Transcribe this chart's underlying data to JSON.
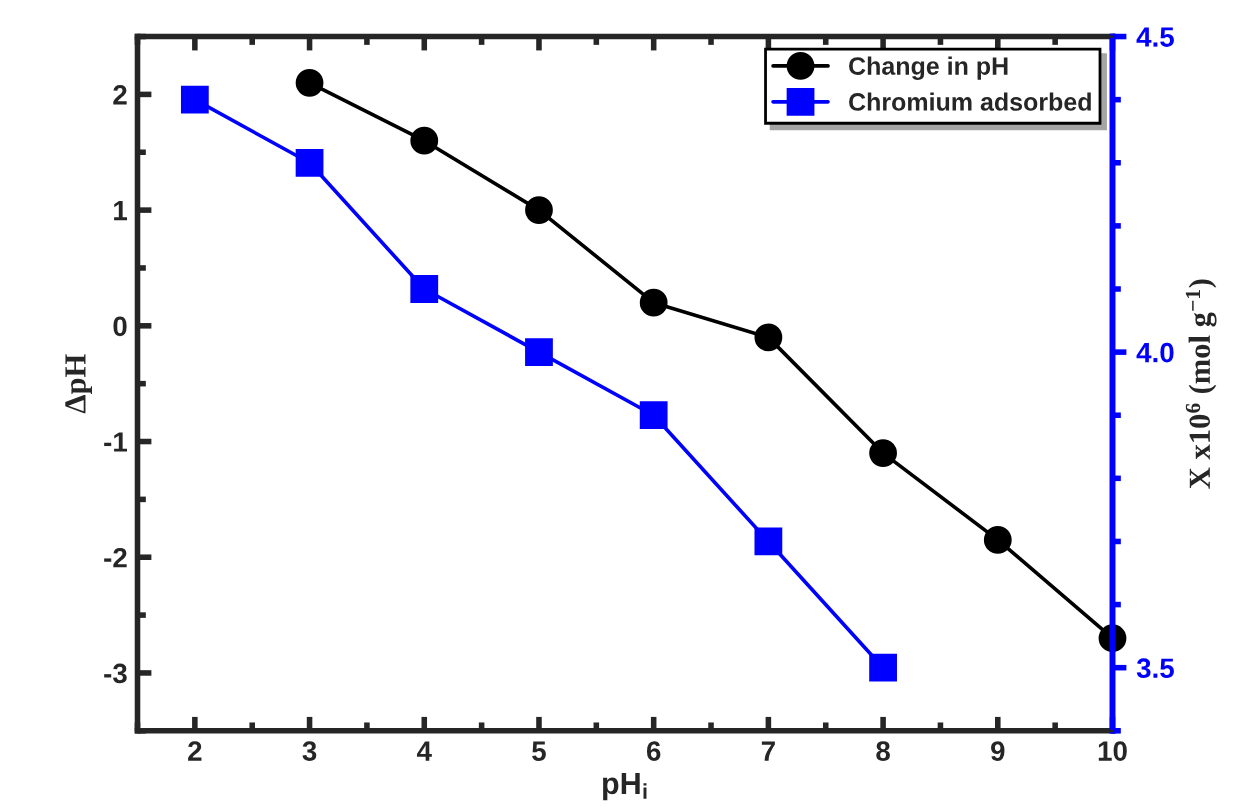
{
  "chart_data": {
    "type": "line",
    "xlabel": "pH$_{i}$",
    "ylabel": "ΔpH",
    "y2label": "X x10$^{6}$ (mol g$^{−1}$)",
    "series": [
      {
        "name": "Change in pH",
        "color": "#000000",
        "marker": "circle",
        "x": [
          3,
          4,
          5,
          6,
          7,
          8,
          9,
          10
        ],
        "values": [
          2.1,
          1.6,
          1.0,
          0.2,
          -0.1,
          -1.1,
          -1.85,
          -2.7
        ]
      },
      {
        "name": "Chromium adsorbed",
        "color": "#0000ff",
        "marker": "square",
        "axis": "y2",
        "x": [
          2,
          3,
          4,
          5,
          6,
          7,
          8
        ],
        "values": [
          4.4,
          4.3,
          4.1,
          4.0,
          3.9,
          3.7,
          3.5
        ]
      }
    ],
    "xlim": [
      1.5,
      10
    ],
    "xticks": [
      2,
      3,
      4,
      5,
      6,
      7,
      8,
      9,
      10
    ],
    "ylim": [
      -3.5,
      2.5
    ],
    "yticks": [
      -3,
      -2,
      -1,
      0,
      1,
      2
    ],
    "y2lim": [
      3.4,
      4.5
    ],
    "y2ticks": [
      3.5,
      {
        "value": 4,
        "label": "4.0"
      },
      4.5
    ],
    "legend": "top right",
    "grid": false,
    "line_style": "solid"
  }
}
